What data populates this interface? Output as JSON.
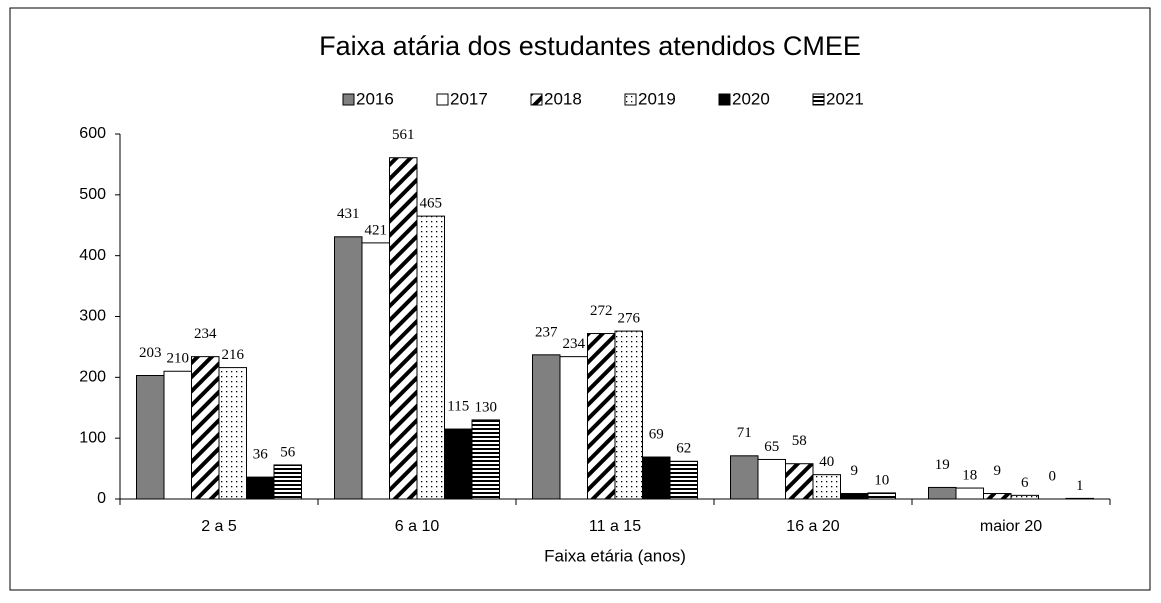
{
  "chart_data": {
    "type": "bar",
    "title": "Faixa atária dos estudantes  atendidos CMEE",
    "x_label": "Faixa etária (anos)",
    "categories": [
      "2 a 5",
      "6 a 10",
      "11 a 15",
      "16 a 20",
      "maior 20"
    ],
    "series": [
      {
        "name": "2016",
        "color": "#808080",
        "pattern": "solid",
        "values": [
          203,
          431,
          237,
          71,
          19
        ]
      },
      {
        "name": "2017",
        "color": "#ffffff",
        "pattern": "solid",
        "values": [
          210,
          421,
          234,
          65,
          18
        ]
      },
      {
        "name": "2018",
        "color": "#000000",
        "pattern": "diagonal",
        "values": [
          234,
          561,
          272,
          58,
          9
        ]
      },
      {
        "name": "2019",
        "color": "#000000",
        "pattern": "dots",
        "values": [
          216,
          465,
          276,
          40,
          6
        ]
      },
      {
        "name": "2020",
        "color": "#000000",
        "pattern": "solid",
        "values": [
          36,
          115,
          69,
          9,
          0
        ]
      },
      {
        "name": "2021",
        "color": "#000000",
        "pattern": "horizontal",
        "values": [
          56,
          130,
          62,
          10,
          1
        ]
      }
    ],
    "ylim": [
      0,
      600
    ],
    "yticks": [
      0,
      100,
      200,
      300,
      400,
      500,
      600
    ],
    "legend": "top",
    "grid": false
  }
}
